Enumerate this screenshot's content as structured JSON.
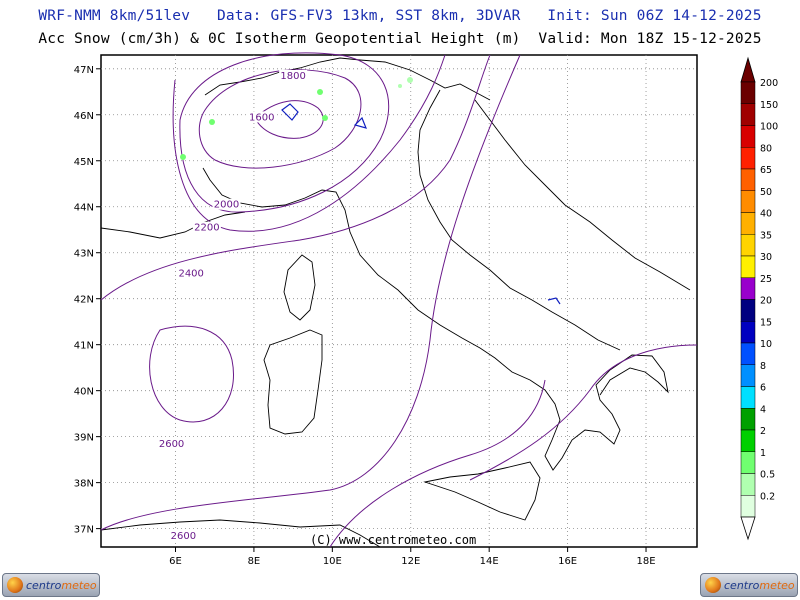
{
  "header": {
    "line1": "WRF-NMM 8km/51lev   Data: GFS-FV3 13km, SST 8km, 3DVAR   Init: Sun 06Z 14-12-2025",
    "line2": "Acc Snow (cm/3h) & 0C Isotherm Geopotential Height (m)  Valid: Mon 18Z 15-12-2025"
  },
  "axes": {
    "lat_labels": [
      "47N",
      "46N",
      "45N",
      "44N",
      "43N",
      "42N",
      "41N",
      "40N",
      "39N",
      "38N",
      "37N"
    ],
    "lat_values": [
      47,
      46,
      45,
      44,
      43,
      42,
      41,
      40,
      39,
      38,
      37
    ],
    "lon_labels": [
      "6E",
      "8E",
      "10E",
      "12E",
      "14E",
      "16E",
      "18E"
    ],
    "lon_values": [
      6,
      8,
      10,
      12,
      14,
      16,
      18
    ],
    "lon_range": [
      4.1,
      19.3
    ],
    "lat_range": [
      36.6,
      47.3
    ]
  },
  "contours": {
    "color": "#6a1a8a",
    "labels": [
      {
        "text": "1800",
        "lon": 9.0,
        "lat": 46.8
      },
      {
        "text": "1600",
        "lon": 8.2,
        "lat": 45.9
      },
      {
        "text": "2000",
        "lon": 7.3,
        "lat": 44.0
      },
      {
        "text": "2200",
        "lon": 6.8,
        "lat": 43.5
      },
      {
        "text": "2400",
        "lon": 6.4,
        "lat": 42.5
      },
      {
        "text": "2600",
        "lon": 5.9,
        "lat": 38.8
      },
      {
        "text": "2600",
        "lon": 6.2,
        "lat": 36.8
      }
    ]
  },
  "colorbar": {
    "labels": [
      "200",
      "150",
      "100",
      "80",
      "65",
      "50",
      "40",
      "35",
      "30",
      "25",
      "20",
      "15",
      "10",
      "8",
      "6",
      "4",
      "2",
      "1",
      "0.5",
      "0.2"
    ],
    "colors": [
      "#6b0000",
      "#a00000",
      "#d80000",
      "#ff2000",
      "#ff6000",
      "#ff8c00",
      "#ffb000",
      "#ffd400",
      "#fff000",
      "#9900cc",
      "#000080",
      "#0000c0",
      "#0050ff",
      "#0090ff",
      "#00e0ff",
      "#00a000",
      "#00d000",
      "#70ff70",
      "#b0ffb0",
      "#e0ffe0"
    ]
  },
  "copyright": "(C) www.centrometeo.com",
  "logos": {
    "left": "centrometeo",
    "right": "centrometeo",
    "part1": "centro",
    "part2": "meteo"
  }
}
